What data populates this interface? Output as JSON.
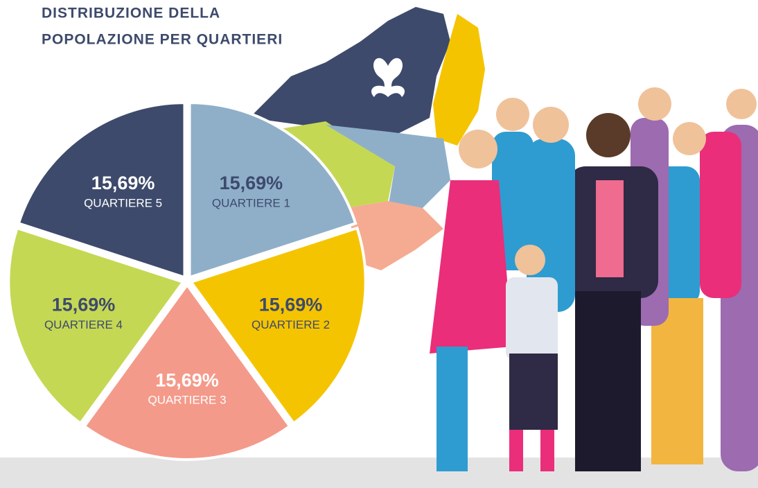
{
  "chart_data": {
    "type": "pie",
    "title": [
      "DISTRIBUZIONE DELLA",
      "POPOLAZIONE PER QUARTIERI"
    ],
    "categories": [
      "QUARTIERE 1",
      "QUARTIERE 2",
      "QUARTIERE 3",
      "QUARTIERE 4",
      "QUARTIERE 5"
    ],
    "values": [
      15.69,
      15.69,
      15.69,
      15.69,
      15.69
    ],
    "value_labels": [
      "15,69%",
      "15,69%",
      "15,69%",
      "15,69%",
      "15,69%"
    ],
    "colors": [
      "#8fafc9",
      "#f5c400",
      "#f49a8a",
      "#c5d854",
      "#3d4a6b"
    ]
  }
}
